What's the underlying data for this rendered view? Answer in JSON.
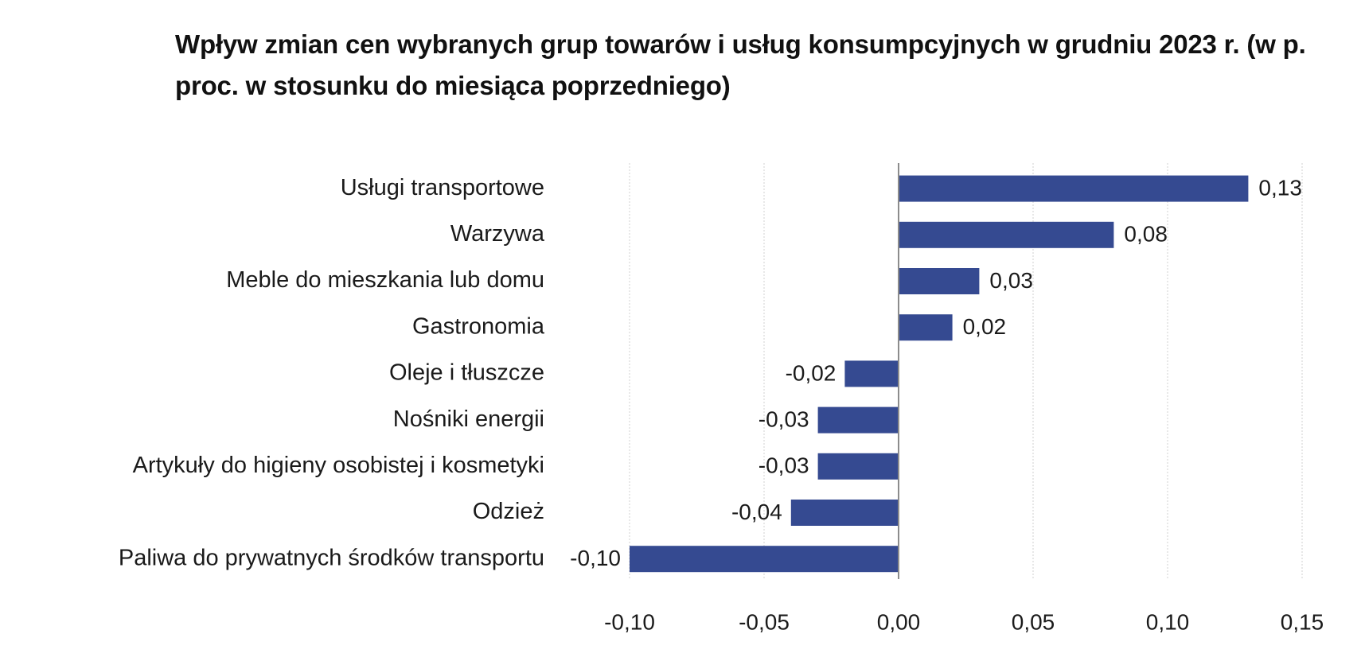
{
  "chart_data": {
    "type": "bar",
    "orientation": "horizontal",
    "title": "Wpływ zmian cen wybranych grup towarów i usług konsumpcyjnych w grudniu 2023 r. (w p. proc. w stosunku do miesiąca poprzedniego)",
    "categories": [
      "Usługi transportowe",
      "Warzywa",
      "Meble do mieszkania lub domu",
      "Gastronomia",
      "Oleje i tłuszcze",
      "Nośniki energii",
      "Artykuły do higieny osobistej i kosmetyki",
      "Odzież",
      "Paliwa do prywatnych środków transportu"
    ],
    "values": [
      0.13,
      0.08,
      0.03,
      0.02,
      -0.02,
      -0.03,
      -0.03,
      -0.04,
      -0.1
    ],
    "value_labels": [
      "0,13",
      "0,08",
      "0,03",
      "0,02",
      "-0,02",
      "-0,03",
      "-0,03",
      "-0,04",
      "-0,10"
    ],
    "xlim": [
      -0.1,
      0.15
    ],
    "xticks": [
      -0.1,
      -0.05,
      0.0,
      0.05,
      0.1,
      0.15
    ],
    "xtick_labels": [
      "-0,10",
      "-0,05",
      "0,00",
      "0,05",
      "0,10",
      "0,15"
    ],
    "grid": "vertical",
    "bar_color": "#354a91",
    "grid_color": "#d9d9d9",
    "zero_line_color": "#8c8c8c"
  }
}
